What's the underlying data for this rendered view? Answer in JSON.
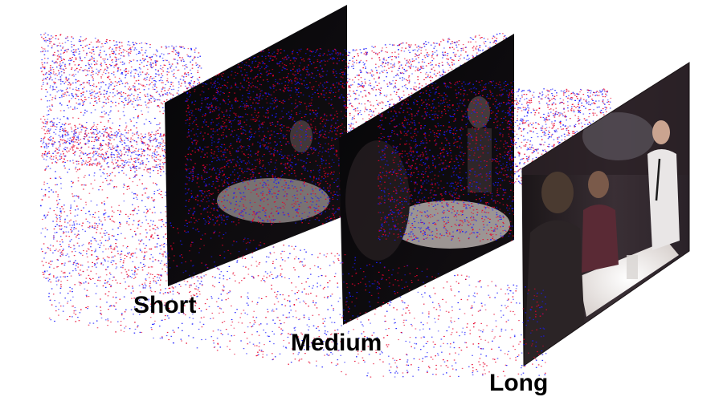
{
  "labels": {
    "short": "Short",
    "medium": "Medium",
    "long": "Long"
  },
  "colors": {
    "positive_event": "#e8002a",
    "negative_event": "#1a1aff",
    "frame_dark": "#070709",
    "frame_scene": "#3a2f35",
    "tablecloth": "#f4f1ee",
    "background": "#ffffff"
  },
  "icons": {
    "event_cloud": "event-point-cloud",
    "frame": "video-frame-panel"
  }
}
